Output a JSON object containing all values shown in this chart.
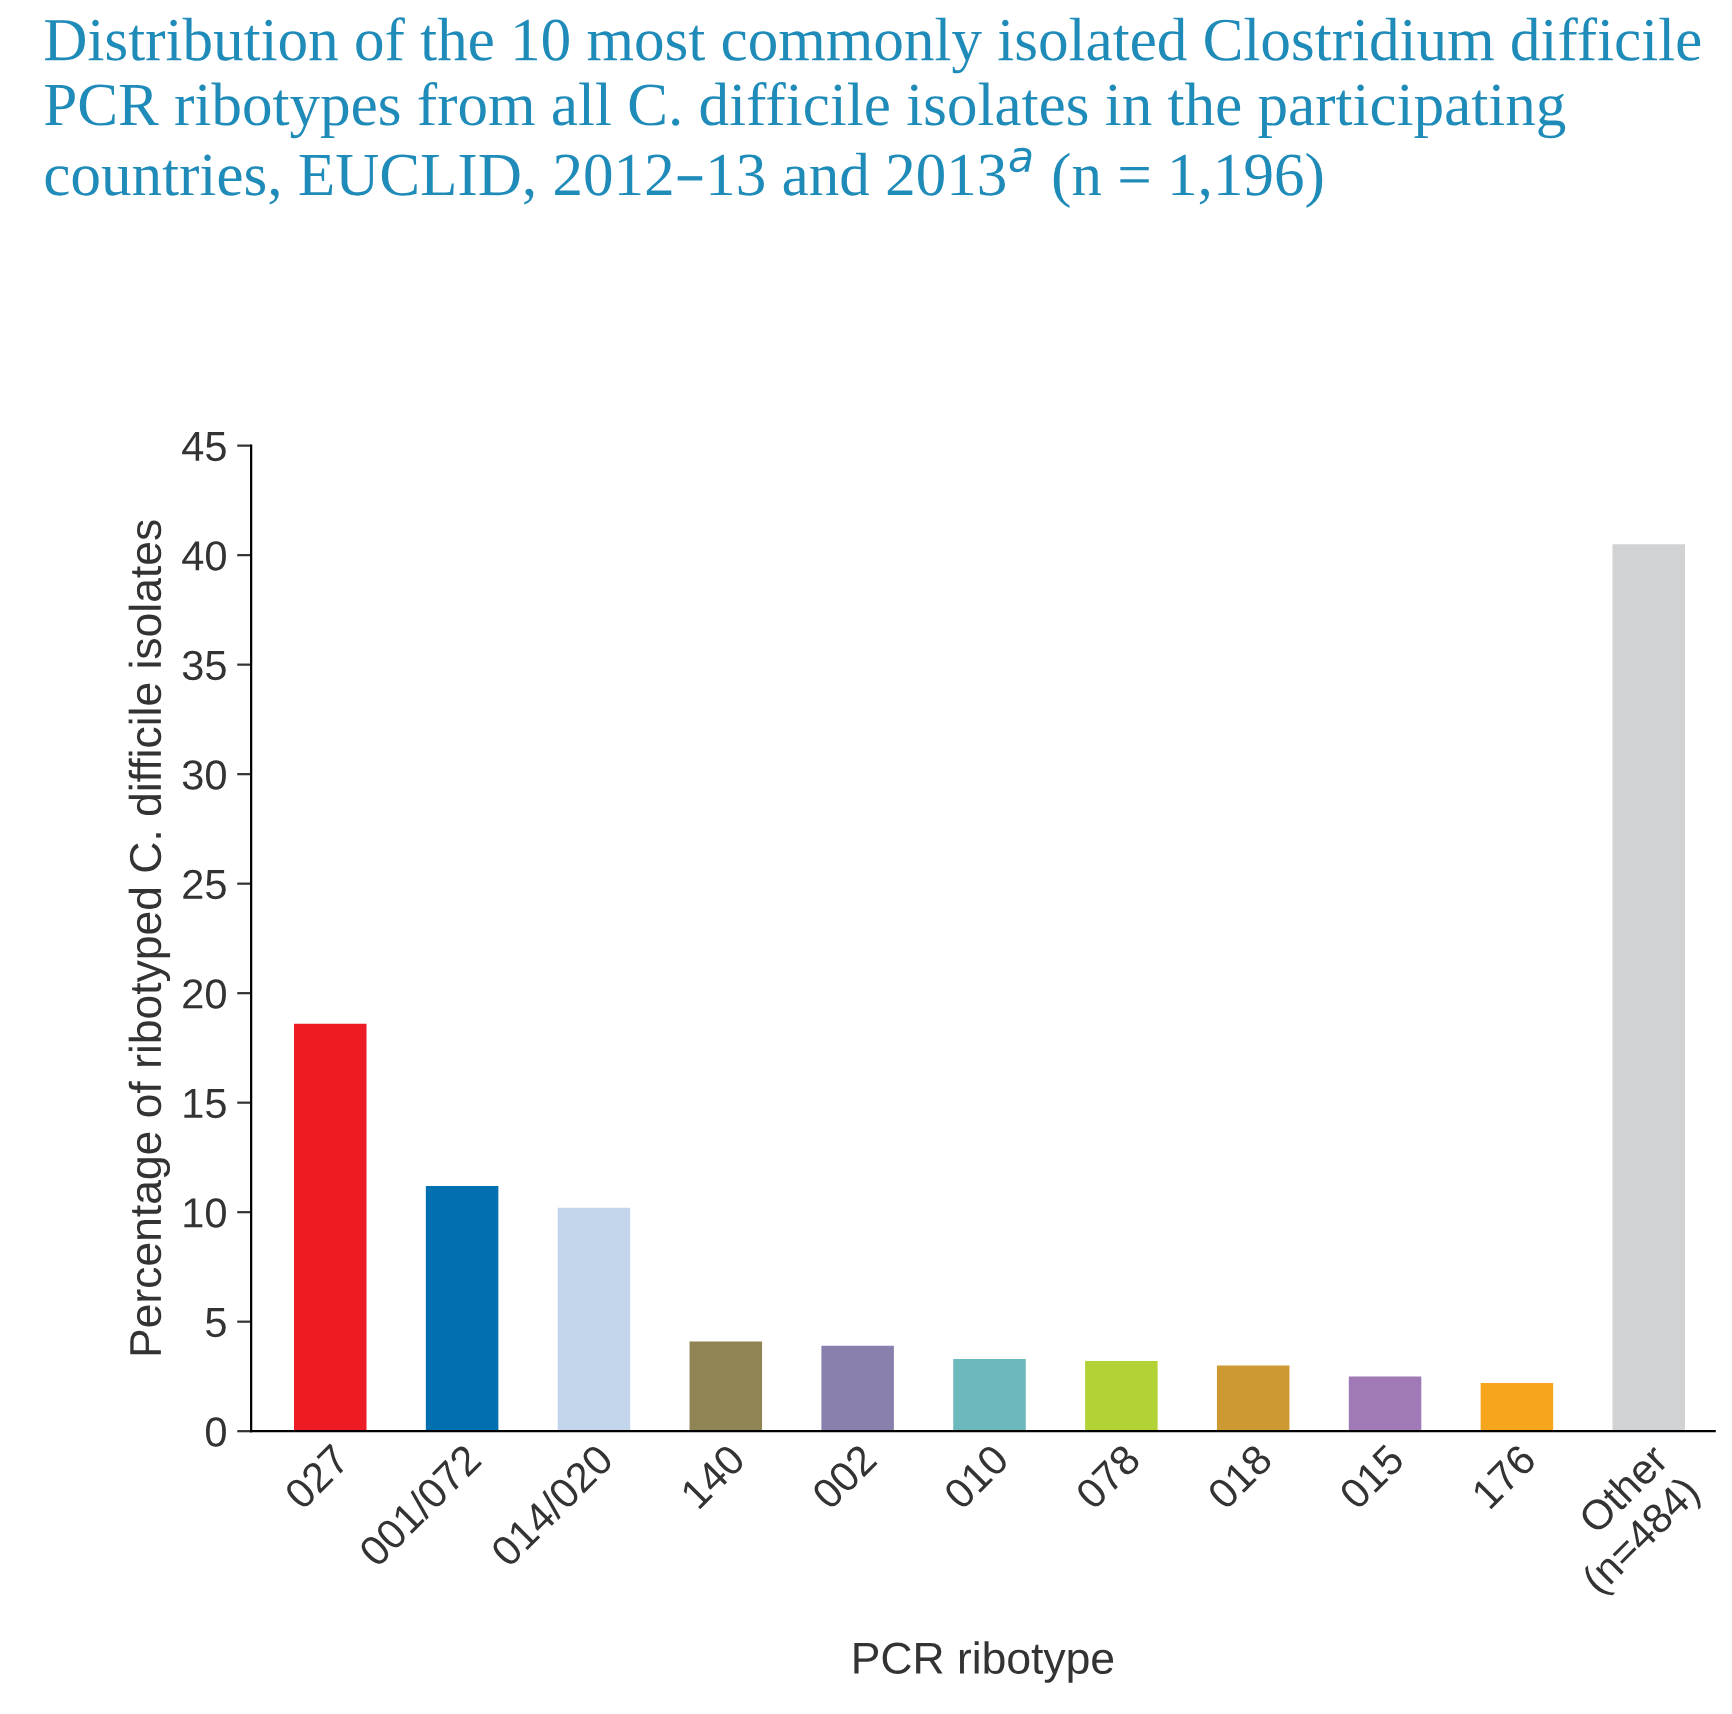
{
  "chart_data": {
    "type": "bar",
    "title": "Distribution of the 10 most commonly isolated Clostridium difficile PCR ribotypes from all C. difficile isolates in the participating countries, EUCLID, 2012–13 and 2013$^{a}$ (n = 1,196)",
    "xlabel": "PCR ribotype",
    "ylabel": "Percentage of ribotyped C. difficile isolates",
    "categories": [
      "027",
      "001/072",
      "014/020",
      "140",
      "002",
      "010",
      "078",
      "018",
      "015",
      "176",
      "Other\n(n=484)"
    ],
    "values": [
      18.6,
      11.2,
      10.2,
      4.1,
      3.9,
      3.3,
      3.2,
      3.0,
      2.5,
      2.2,
      40.5
    ],
    "colors": [
      "#ed1c24",
      "#0070b0",
      "#c2d5ea",
      "#918454",
      "#8a80ae",
      "#6bb8bd",
      "#b2d235",
      "#cd9933",
      "#a07ab6",
      "#f8a51e",
      "#d1d2d4"
    ],
    "ylim": [
      0,
      45
    ],
    "yticks": [
      0,
      5,
      10,
      15,
      20,
      25,
      30,
      35,
      40,
      45
    ],
    "grid": false
  }
}
